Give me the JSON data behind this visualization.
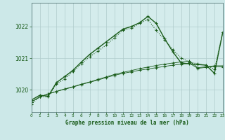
{
  "title": "Graphe pression niveau de la mer (hPa)",
  "bg_color": "#cce8e8",
  "plot_bg": "#d4ecec",
  "grid_color": "#b0cccc",
  "lc": "#1a5c1a",
  "xlim": [
    0,
    23
  ],
  "ylim": [
    1019.3,
    1022.75
  ],
  "yticks": [
    1020,
    1021,
    1022
  ],
  "xticks": [
    0,
    1,
    2,
    3,
    4,
    5,
    6,
    7,
    8,
    9,
    10,
    11,
    12,
    13,
    14,
    15,
    16,
    17,
    18,
    19,
    20,
    21,
    22,
    23
  ],
  "s1": [
    1019.62,
    1019.78,
    1019.87,
    1019.95,
    1020.02,
    1020.09,
    1020.17,
    1020.24,
    1020.31,
    1020.39,
    1020.46,
    1020.52,
    1020.57,
    1020.62,
    1020.66,
    1020.7,
    1020.74,
    1020.78,
    1020.81,
    1020.84,
    1020.68,
    1020.71,
    1020.74,
    1020.72
  ],
  "s2": [
    1019.62,
    1019.78,
    1019.87,
    1019.95,
    1020.03,
    1020.1,
    1020.18,
    1020.25,
    1020.33,
    1020.41,
    1020.49,
    1020.55,
    1020.61,
    1020.67,
    1020.72,
    1020.77,
    1020.81,
    1020.85,
    1020.88,
    1020.91,
    1020.7,
    1020.73,
    1020.76,
    1020.76
  ],
  "s3": [
    1019.55,
    1019.78,
    1019.78,
    1020.18,
    1020.35,
    1020.58,
    1020.82,
    1021.05,
    1021.22,
    1021.42,
    1021.65,
    1021.88,
    1021.95,
    1022.1,
    1022.22,
    1021.88,
    1021.58,
    1021.27,
    1021.0,
    1020.88,
    1020.82,
    1020.78,
    1020.65,
    1021.82
  ],
  "s4": [
    1019.68,
    1019.83,
    1019.8,
    1020.23,
    1020.42,
    1020.62,
    1020.88,
    1021.12,
    1021.32,
    1021.52,
    1021.72,
    1021.92,
    1022.0,
    1022.12,
    1022.32,
    1022.1,
    1021.62,
    1021.2,
    1020.85,
    1020.82,
    1020.8,
    1020.78,
    1020.52,
    1021.82
  ]
}
